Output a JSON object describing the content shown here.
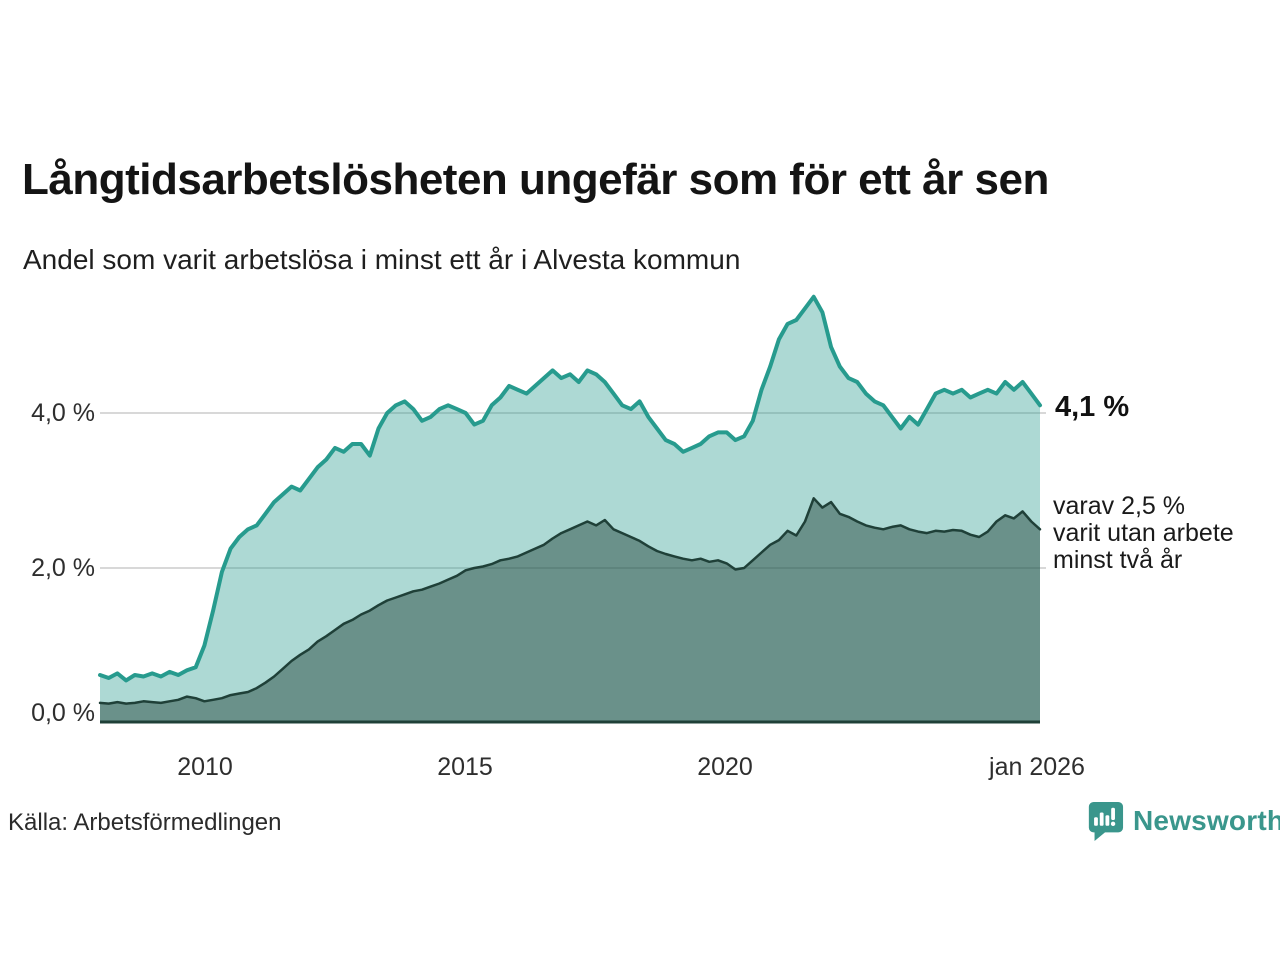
{
  "header": {
    "title": "Långtidsarbetslösheten ungefär som för ett år sen",
    "subtitle": "Andel som varit arbetslösa i minst ett år i Alvesta kommun"
  },
  "chart_data": {
    "type": "area",
    "title": "Långtidsarbetslösheten ungefär som för ett år sen",
    "subtitle": "Andel som varit arbetslösa i minst ett år i Alvesta kommun",
    "unit": "%",
    "x_start": "2008-01",
    "x_end": "2026-01",
    "x_step_months": 2,
    "ylim": [
      0,
      5.8
    ],
    "grid": "horizontal",
    "legend_position": "none",
    "yticks": [
      {
        "value": 0.0,
        "label": "0,0 %"
      },
      {
        "value": 2.0,
        "label": "2,0 %"
      },
      {
        "value": 4.0,
        "label": "4,0 %"
      }
    ],
    "xticks": [
      {
        "x": "2010-01",
        "label": "2010"
      },
      {
        "x": "2015-01",
        "label": "2015"
      },
      {
        "x": "2020-01",
        "label": "2020"
      },
      {
        "x": "2026-01",
        "label": "jan 2026"
      }
    ],
    "series": [
      {
        "name": "Andel som varit arbetslösa minst ett år",
        "last_value": 4.1,
        "line_color": "#279b8e",
        "fill_color": "rgba(39,155,142,0.38)",
        "values": [
          0.62,
          0.58,
          0.64,
          0.55,
          0.62,
          0.6,
          0.64,
          0.6,
          0.66,
          0.62,
          0.68,
          0.72,
          1.0,
          1.45,
          1.95,
          2.25,
          2.4,
          2.5,
          2.55,
          2.7,
          2.85,
          2.95,
          3.05,
          3.0,
          3.15,
          3.3,
          3.4,
          3.55,
          3.5,
          3.6,
          3.6,
          3.45,
          3.8,
          4.0,
          4.1,
          4.15,
          4.05,
          3.9,
          3.95,
          4.05,
          4.1,
          4.05,
          4.0,
          3.85,
          3.9,
          4.1,
          4.2,
          4.35,
          4.3,
          4.25,
          4.35,
          4.45,
          4.55,
          4.45,
          4.5,
          4.4,
          4.55,
          4.5,
          4.4,
          4.25,
          4.1,
          4.05,
          4.15,
          3.95,
          3.8,
          3.65,
          3.6,
          3.5,
          3.55,
          3.6,
          3.7,
          3.75,
          3.75,
          3.65,
          3.7,
          3.9,
          4.3,
          4.6,
          4.95,
          5.15,
          5.2,
          5.35,
          5.5,
          5.3,
          4.85,
          4.6,
          4.45,
          4.4,
          4.25,
          4.15,
          4.1,
          3.95,
          3.8,
          3.95,
          3.85,
          4.05,
          4.25,
          4.3,
          4.25,
          4.3,
          4.2,
          4.25,
          4.3,
          4.25,
          4.4,
          4.3,
          4.4,
          4.25,
          4.1
        ]
      },
      {
        "name": "Varav utan arbete minst två år",
        "last_value": 2.5,
        "line_color": "#1f4038",
        "fill_color": "rgba(31,64,56,0.47)",
        "values": [
          0.26,
          0.25,
          0.27,
          0.25,
          0.26,
          0.28,
          0.27,
          0.26,
          0.28,
          0.3,
          0.34,
          0.32,
          0.28,
          0.3,
          0.32,
          0.36,
          0.38,
          0.4,
          0.45,
          0.52,
          0.6,
          0.7,
          0.8,
          0.88,
          0.95,
          1.05,
          1.12,
          1.2,
          1.28,
          1.33,
          1.4,
          1.45,
          1.52,
          1.58,
          1.62,
          1.66,
          1.7,
          1.72,
          1.76,
          1.8,
          1.85,
          1.9,
          1.97,
          2.0,
          2.02,
          2.05,
          2.1,
          2.12,
          2.15,
          2.2,
          2.25,
          2.3,
          2.38,
          2.45,
          2.5,
          2.55,
          2.6,
          2.55,
          2.62,
          2.5,
          2.45,
          2.4,
          2.35,
          2.28,
          2.22,
          2.18,
          2.15,
          2.12,
          2.1,
          2.12,
          2.08,
          2.1,
          2.06,
          1.98,
          2.0,
          2.1,
          2.2,
          2.3,
          2.36,
          2.48,
          2.42,
          2.6,
          2.9,
          2.78,
          2.85,
          2.7,
          2.66,
          2.6,
          2.55,
          2.52,
          2.5,
          2.53,
          2.55,
          2.5,
          2.47,
          2.45,
          2.48,
          2.47,
          2.49,
          2.48,
          2.43,
          2.4,
          2.47,
          2.6,
          2.68,
          2.64,
          2.73,
          2.6,
          2.5
        ]
      }
    ]
  },
  "annotations": {
    "total_label": "4,1 %",
    "two_year_lines": [
      "varav 2,5 %",
      "varit utan arbete",
      "minst två år"
    ]
  },
  "footer": {
    "source": "Källa: Arbetsförmedlingen",
    "brand": "Newsworthy"
  },
  "colors": {
    "accent_teal": "#279b8e",
    "dark_teal": "#1f4038",
    "brand_teal": "#3a968c",
    "gridline": "#d8d8d8",
    "text": "#141414"
  }
}
